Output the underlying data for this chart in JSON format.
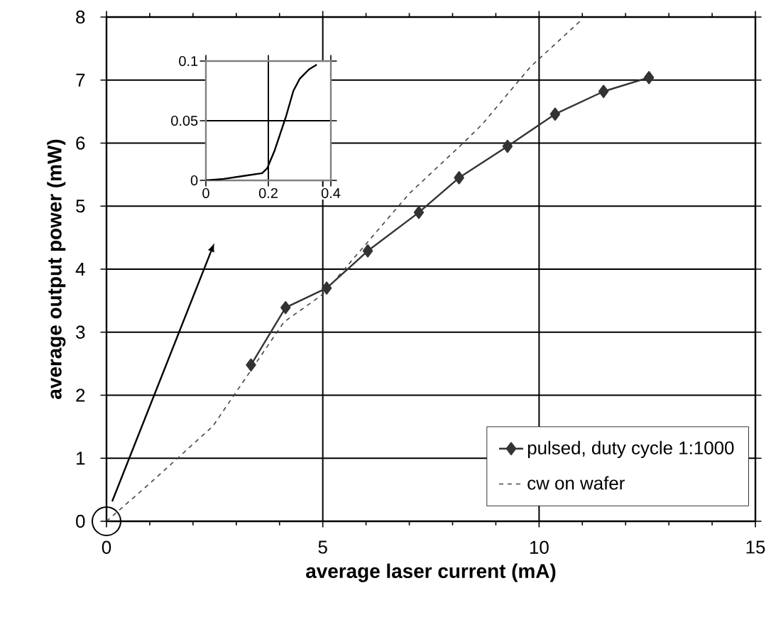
{
  "chart_data": [
    {
      "type": "line",
      "xlabel": "average laser current (mA)",
      "ylabel": "average output power (mW)",
      "xlim": [
        0,
        15
      ],
      "ylim": [
        0,
        8
      ],
      "xticks": [
        0,
        5,
        10,
        15
      ],
      "yticks": [
        0,
        1,
        2,
        3,
        4,
        5,
        6,
        7,
        8
      ],
      "grid": true,
      "legend": "bottom right",
      "series": [
        {
          "name": "pulsed, duty cycle 1:1000",
          "color": "#333333",
          "marker": "diamond",
          "line_style": "solid",
          "x": [
            3.34,
            4.14,
            5.09,
            6.04,
            7.22,
            8.15,
            9.27,
            10.37,
            11.49,
            12.54
          ],
          "values": [
            2.48,
            3.39,
            3.7,
            4.29,
            4.9,
            5.45,
            5.95,
            6.46,
            6.82,
            7.04
          ]
        },
        {
          "name": "cw on wafer",
          "color": "#444444",
          "marker": "none",
          "line_style": "dashed",
          "x": [
            0,
            1,
            2.46,
            4.1,
            5,
            6,
            7,
            8.26,
            8.7,
            9.8,
            10.94
          ],
          "values": [
            0,
            0.6,
            1.51,
            3.16,
            3.6,
            4.4,
            5.2,
            6.01,
            6.31,
            7.21,
            7.93
          ]
        }
      ]
    },
    {
      "type": "line",
      "xlim": [
        0,
        0.4
      ],
      "ylim": [
        0,
        0.1
      ],
      "xticks": [
        0,
        0.2,
        0.4
      ],
      "yticks": [
        0,
        0.05,
        0.1
      ],
      "grid": true,
      "series": [
        {
          "color": "#000000",
          "marker": "none",
          "line_style": "solid",
          "x": [
            0,
            0.05,
            0.128,
            0.18,
            0.196,
            0.22,
            0.257,
            0.28,
            0.3,
            0.33,
            0.355
          ],
          "values": [
            0,
            0.001,
            0.004,
            0.006,
            0.01,
            0.025,
            0.054,
            0.075,
            0.085,
            0.093,
            0.097
          ]
        }
      ]
    }
  ]
}
